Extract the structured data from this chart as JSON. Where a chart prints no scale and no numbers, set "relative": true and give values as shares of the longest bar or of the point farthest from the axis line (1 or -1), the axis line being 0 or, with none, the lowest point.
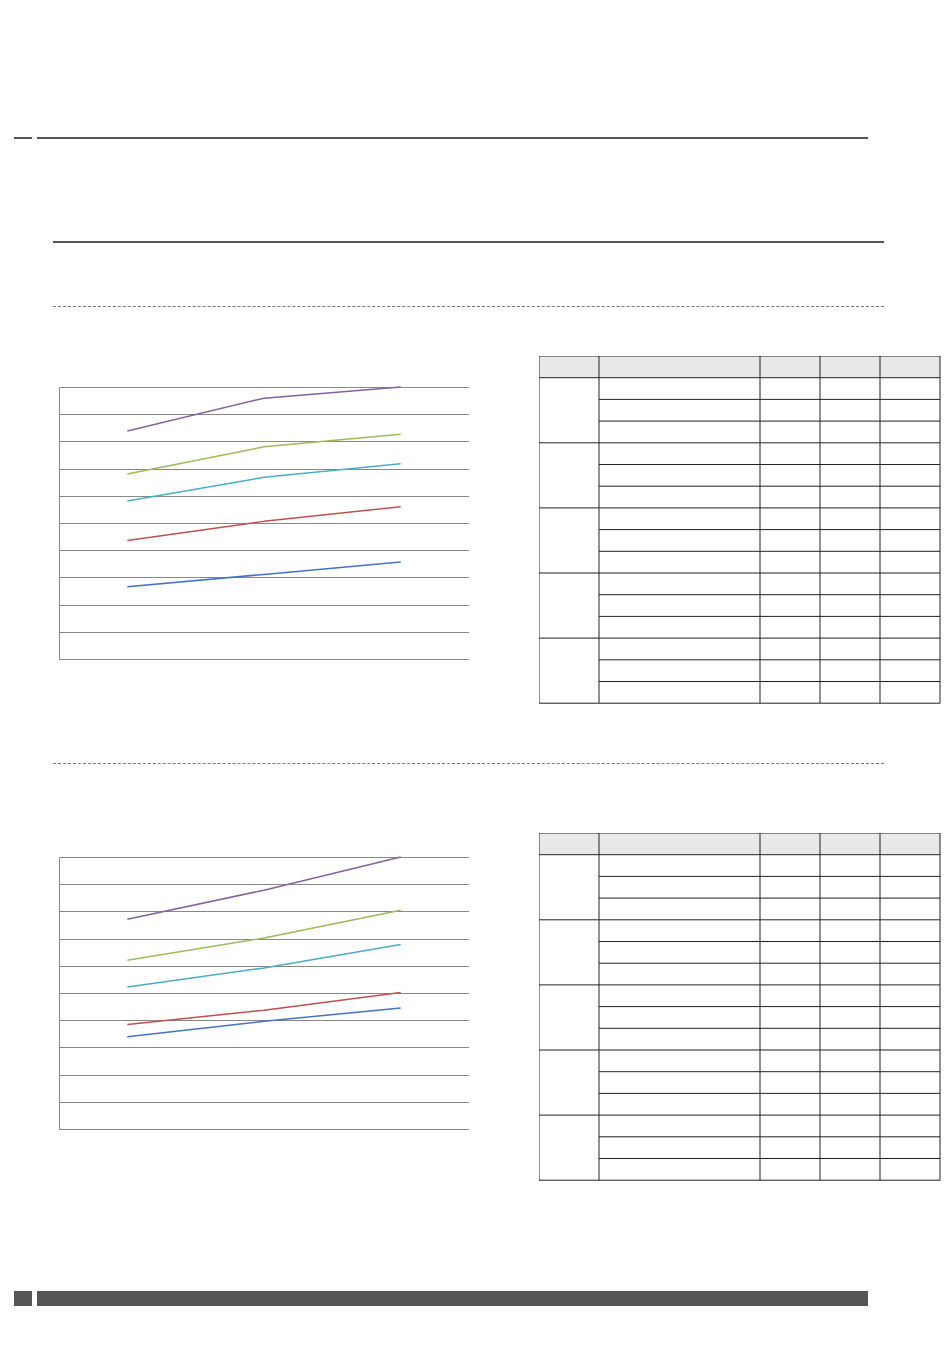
{
  "chart_data": [
    {
      "type": "line",
      "relative": true,
      "grid": "y",
      "categories": [
        null,
        null,
        null
      ],
      "series": [
        {
          "color": "#4472c4",
          "values": [
            0.266,
            0.311,
            0.357
          ]
        },
        {
          "color": "#c0504d",
          "values": [
            0.436,
            0.506,
            0.56
          ]
        },
        {
          "color": "#4bacc6",
          "values": [
            0.581,
            0.668,
            0.718
          ]
        },
        {
          "color": "#9bbb59",
          "values": [
            0.68,
            0.78,
            0.826
          ]
        },
        {
          "color": "#8064a2",
          "values": [
            0.838,
            0.959,
            1
          ]
        }
      ]
    },
    {
      "type": "line",
      "relative": true,
      "grid": "y",
      "categories": [
        null,
        null,
        null
      ],
      "series": [
        {
          "color": "#4472c4",
          "values": [
            0.339,
            0.396,
            0.445
          ]
        },
        {
          "color": "#c0504d",
          "values": [
            0.384,
            0.437,
            0.502
          ]
        },
        {
          "color": "#4bacc6",
          "values": [
            0.522,
            0.592,
            0.678
          ]
        },
        {
          "color": "#9bbb59",
          "values": [
            0.62,
            0.702,
            0.804
          ]
        },
        {
          "color": "#8064a2",
          "values": [
            0.771,
            0.878,
            1
          ]
        }
      ]
    }
  ]
}
